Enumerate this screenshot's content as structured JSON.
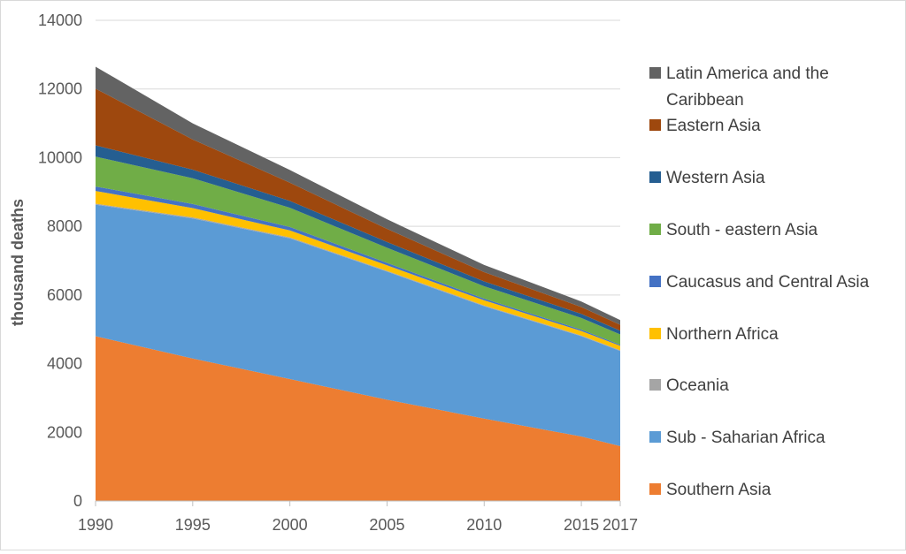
{
  "chart_data": {
    "type": "area",
    "stacked": true,
    "title": "",
    "xlabel": "",
    "ylabel": "thousand deaths",
    "x": [
      1990,
      1995,
      2000,
      2005,
      2010,
      2015,
      2017
    ],
    "ylim": [
      0,
      14000
    ],
    "yticks": [
      0,
      2000,
      4000,
      6000,
      8000,
      10000,
      12000,
      14000
    ],
    "grid": "horizontal",
    "legend": "right",
    "series": [
      {
        "name": "Southern Asia",
        "color": "#ED7D31",
        "values": [
          4800,
          4150,
          3550,
          2950,
          2400,
          1880,
          1600
        ]
      },
      {
        "name": "Sub - Saharian Africa",
        "color": "#5B9BD5",
        "values": [
          3830,
          4080,
          4100,
          3730,
          3270,
          2920,
          2770
        ]
      },
      {
        "name": "Oceania",
        "color": "#A5A5A5",
        "values": [
          30,
          30,
          30,
          25,
          25,
          20,
          20
        ]
      },
      {
        "name": "Northern Africa",
        "color": "#FFC000",
        "values": [
          370,
          270,
          200,
          160,
          150,
          130,
          130
        ]
      },
      {
        "name": "Caucasus and Central Asia",
        "color": "#4472C4",
        "values": [
          130,
          120,
          100,
          70,
          50,
          40,
          30
        ]
      },
      {
        "name": "South - eastern Asia",
        "color": "#70AD47",
        "values": [
          870,
          750,
          560,
          440,
          360,
          340,
          300
        ]
      },
      {
        "name": "Western Asia",
        "color": "#255E91",
        "values": [
          330,
          250,
          200,
          170,
          140,
          120,
          110
        ]
      },
      {
        "name": "Eastern Asia",
        "color": "#9E480E",
        "values": [
          1650,
          880,
          530,
          380,
          270,
          200,
          170
        ]
      },
      {
        "name": "Latin America and the Caribbean",
        "color": "#636363",
        "values": [
          640,
          470,
          370,
          280,
          210,
          160,
          140
        ]
      }
    ]
  }
}
